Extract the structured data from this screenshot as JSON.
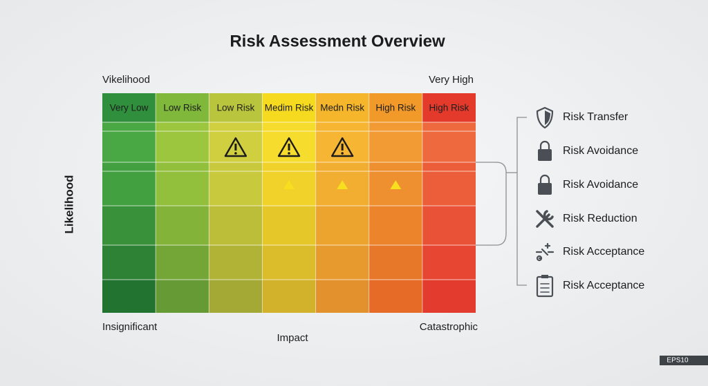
{
  "title": "Risk Assessment Overview",
  "matrix": {
    "y_axis_top_label": "Vikelihood",
    "top_right_label": "Very High",
    "y_axis_label": "Likelihood",
    "x_axis_start_label": "Insignificant",
    "x_axis_end_label": "Catastrophic",
    "x_axis_label": "Impact",
    "column_headers": [
      "Very Low",
      "Low Risk",
      "Low Risk",
      "Medim Risk",
      "Medn Risk",
      "High Risk",
      "High Risk"
    ]
  },
  "strategies": [
    {
      "icon": "shield",
      "label": "Risk Transfer"
    },
    {
      "icon": "lock",
      "label": "Risk Avoidance"
    },
    {
      "icon": "lock",
      "label": "Risk Avoidance"
    },
    {
      "icon": "tools",
      "label": "Risk Reduction"
    },
    {
      "icon": "spark",
      "label": "Risk Acceptance"
    },
    {
      "icon": "clipboard",
      "label": "Risk Acceptance"
    }
  ],
  "badge": "EPS10"
}
